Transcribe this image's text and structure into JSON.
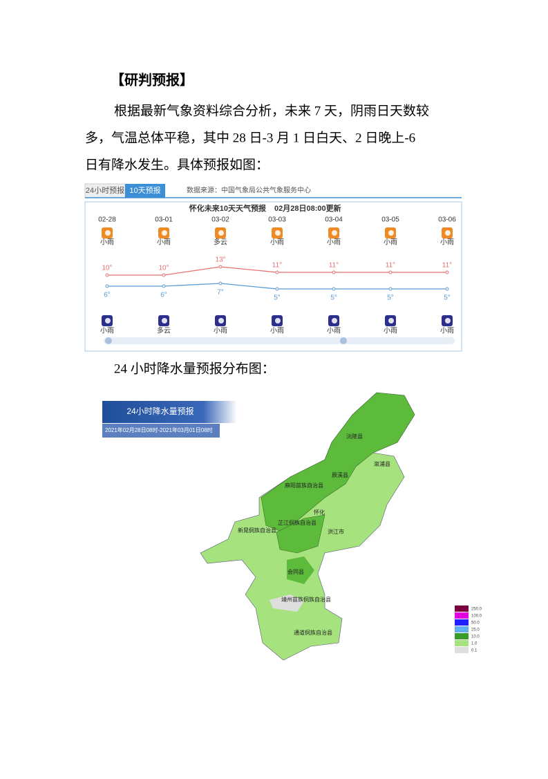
{
  "heading": "【研判预报】",
  "paragraph": [
    "根据最新气象资料综合分析，未来 7 天，阴雨日天数较",
    "多，气温总体平稳，其中 28 日-3 月 1 日白天、2 日晚上-6",
    "日有降水发生。具体预报如图："
  ],
  "forecast": {
    "tabs": [
      "24小时预报",
      "10天预报"
    ],
    "source": "数据来源：中国气象局公共气象服务中心",
    "title": "怀化未来10天天气预报",
    "updated": "02月28日08:00更新",
    "dates": [
      "02-28",
      "03-01",
      "03-02",
      "03-03",
      "03-04",
      "03-05",
      "03-06"
    ],
    "day_weather": [
      "小雨",
      "小雨",
      "多云",
      "小雨",
      "小雨",
      "小雨",
      "小雨"
    ],
    "highs": {
      "values": [
        10,
        10,
        13,
        11,
        11,
        11,
        11
      ],
      "value_labels": [
        "10°",
        "10°",
        "13°",
        "11°",
        "11°",
        "11°",
        "11°"
      ],
      "color": "#e87070"
    },
    "lows": {
      "values": [
        6,
        6,
        7,
        5,
        5,
        5,
        5
      ],
      "value_labels": [
        "6°",
        "6°",
        "7°",
        "5°",
        "5°",
        "5°",
        "5°"
      ],
      "color": "#5b9bd5"
    },
    "night_weather": [
      "小雨",
      "多云",
      "小雨",
      "小雨",
      "小雨",
      "小雨",
      "小雨"
    ]
  },
  "section2": "24 小时降水量预报分布图：",
  "map": {
    "title": "24小时降水量预报",
    "subtitle": "2021年02月28日08时-2021年03月01日08时",
    "places": [
      "沅陵县",
      "辰溪县",
      "溆浦县",
      "麻阳苗族自治县",
      "怀化",
      "芷江侗族自治县",
      "洪江市",
      "新晃侗族自治县",
      "会同县",
      "靖州苗族侗族自治县",
      "通道侗族自治县"
    ],
    "legend": [
      {
        "value": 250,
        "label": "250.0",
        "color": "#7a0040"
      },
      {
        "value": 100,
        "label": "100.0",
        "color": "#e000e0"
      },
      {
        "value": 50,
        "label": "50.0",
        "color": "#2020ff"
      },
      {
        "value": 25,
        "label": "25.0",
        "color": "#62b0f0"
      },
      {
        "value": 10,
        "label": "10.0",
        "color": "#3a9a2a"
      },
      {
        "value": 1,
        "label": "1.0",
        "color": "#a6e37e"
      },
      {
        "value": 0.1,
        "label": "0.1",
        "color": "#dedede"
      }
    ]
  }
}
